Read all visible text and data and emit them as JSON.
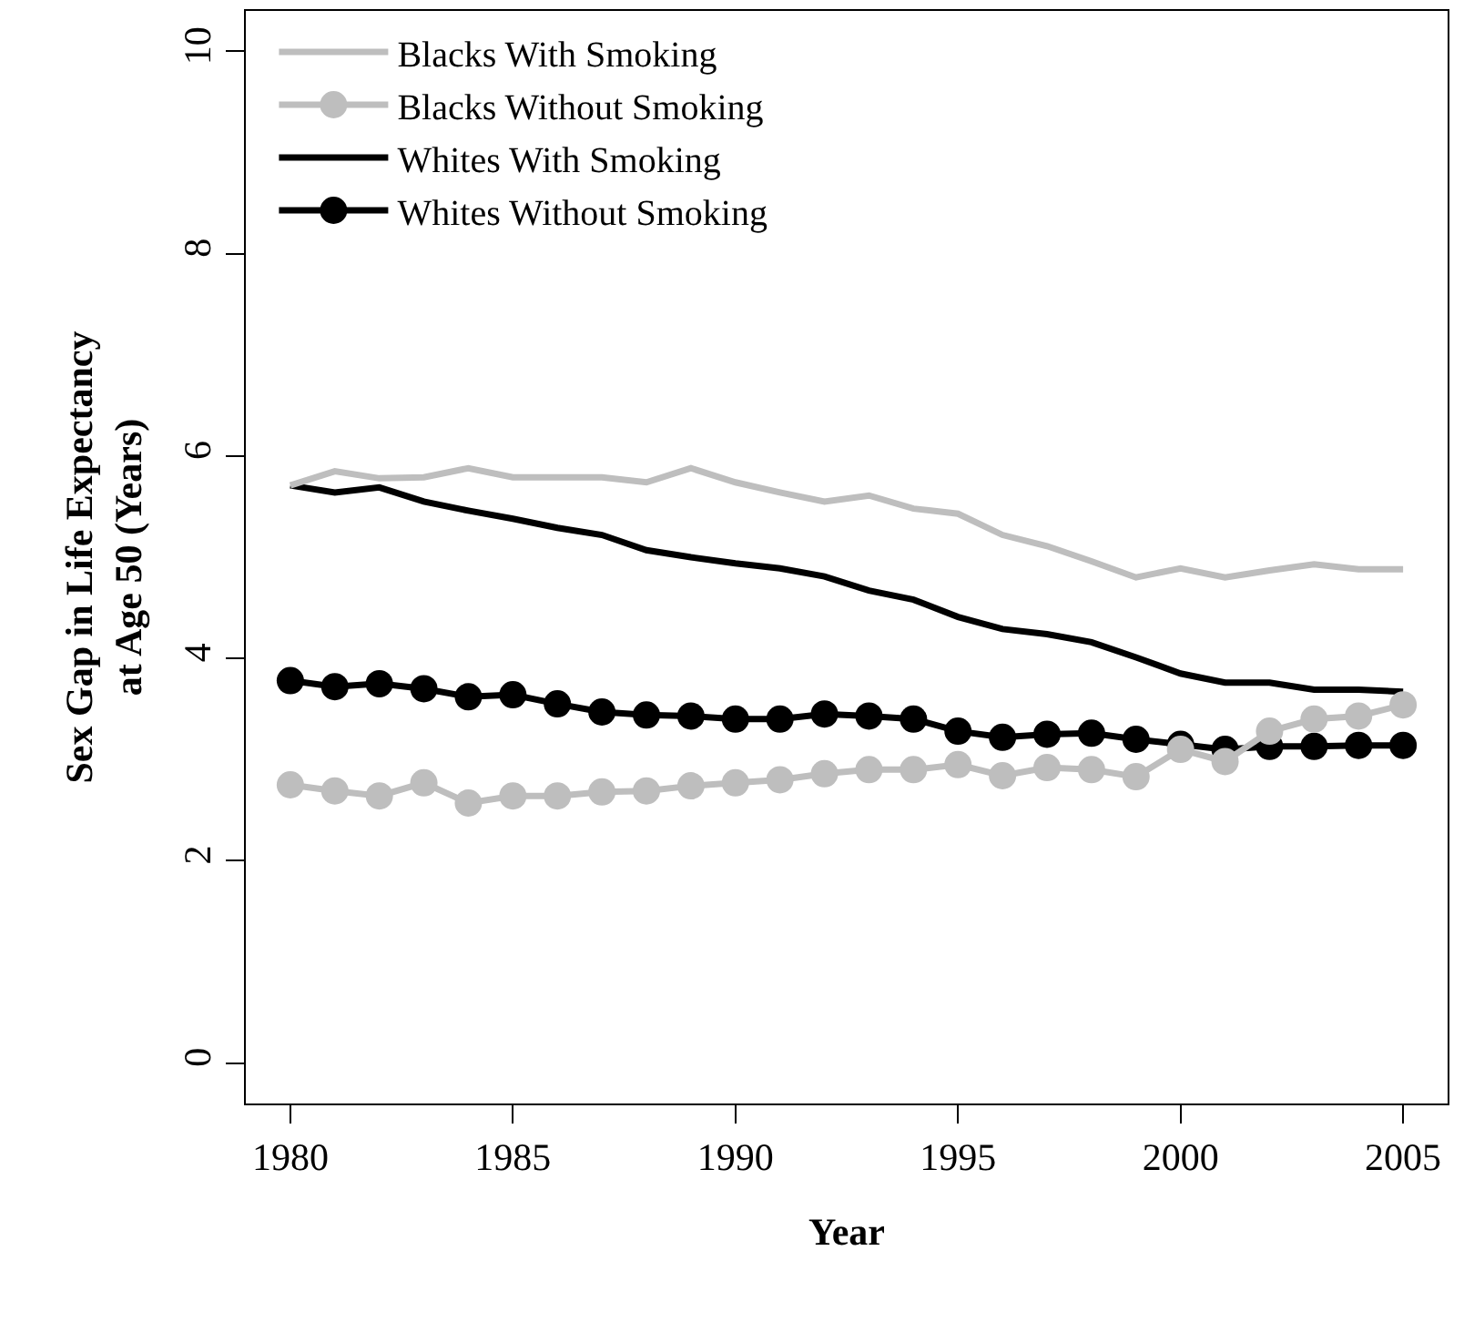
{
  "chart_data": {
    "type": "line",
    "xlabel": "Year",
    "ylabel": "Sex Gap in Life Expectancy\nat Age 50 (Years)",
    "x": [
      1980,
      1981,
      1982,
      1983,
      1984,
      1985,
      1986,
      1987,
      1988,
      1989,
      1990,
      1991,
      1992,
      1993,
      1994,
      1995,
      1996,
      1997,
      1998,
      1999,
      2000,
      2001,
      2002,
      2003,
      2004,
      2005
    ],
    "series": [
      {
        "name": "Blacks With Smoking",
        "color": "#bebebe",
        "marker": "none",
        "values": [
          5.71,
          5.85,
          5.78,
          5.79,
          5.88,
          5.79,
          5.79,
          5.79,
          5.74,
          5.88,
          5.74,
          5.64,
          5.55,
          5.61,
          5.48,
          5.43,
          5.22,
          5.11,
          4.96,
          4.8,
          4.89,
          4.8,
          4.87,
          4.93,
          4.88,
          4.88
        ]
      },
      {
        "name": "Blacks Without Smoking",
        "color": "#bebebe",
        "marker": "circle",
        "values": [
          2.75,
          2.69,
          2.64,
          2.77,
          2.57,
          2.64,
          2.64,
          2.68,
          2.69,
          2.74,
          2.77,
          2.8,
          2.86,
          2.9,
          2.9,
          2.95,
          2.84,
          2.92,
          2.9,
          2.83,
          3.1,
          2.98,
          3.28,
          3.4,
          3.43,
          3.54
        ]
      },
      {
        "name": "Whites With Smoking",
        "color": "#000000",
        "marker": "none",
        "values": [
          5.71,
          5.64,
          5.69,
          5.55,
          5.46,
          5.38,
          5.29,
          5.22,
          5.07,
          5.0,
          4.94,
          4.89,
          4.81,
          4.67,
          4.58,
          4.41,
          4.29,
          4.24,
          4.16,
          4.01,
          3.85,
          3.76,
          3.76,
          3.69,
          3.69,
          3.67
        ]
      },
      {
        "name": "Whites Without Smoking",
        "color": "#000000",
        "marker": "circle",
        "values": [
          3.78,
          3.72,
          3.75,
          3.7,
          3.62,
          3.64,
          3.55,
          3.47,
          3.44,
          3.43,
          3.4,
          3.4,
          3.45,
          3.43,
          3.4,
          3.28,
          3.22,
          3.25,
          3.26,
          3.2,
          3.15,
          3.1,
          3.13,
          3.13,
          3.14,
          3.14
        ]
      }
    ],
    "xlim": [
      1979,
      2006
    ],
    "xticks": [
      1980,
      1985,
      1990,
      1995,
      2000,
      2005
    ],
    "ylim": [
      -0.4,
      10.4
    ],
    "yticks": [
      0,
      2,
      4,
      6,
      8,
      10
    ],
    "legend": "top left",
    "line_style": "solid"
  }
}
